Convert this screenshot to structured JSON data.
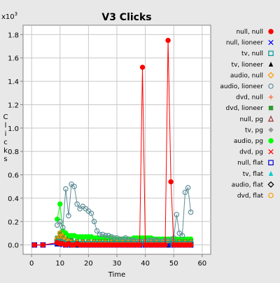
{
  "chart_data": {
    "type": "line",
    "title": "V3 Clicks",
    "xlabel": "Time",
    "ylabel": "Clicks",
    "y_multiplier_label": "x10",
    "y_multiplier_exp": "3",
    "xlim": [
      -3,
      63
    ],
    "ylim": [
      -0.08,
      1.88
    ],
    "xticks": [
      0,
      10,
      20,
      30,
      40,
      50,
      60
    ],
    "yticks": [
      0.0,
      0.2,
      0.4,
      0.6,
      0.8,
      1.0,
      1.2,
      1.4,
      1.6,
      1.8
    ],
    "grid": true,
    "legend_position": "right",
    "series": [
      {
        "name": "null, null",
        "color": "#ff0000",
        "marker": "circle-filled",
        "line": true,
        "x": [
          1,
          4,
          9,
          10,
          11,
          12,
          13,
          14,
          15,
          16,
          17,
          18,
          19,
          20,
          21,
          22,
          23,
          24,
          25,
          26,
          27,
          28,
          29,
          30,
          31,
          32,
          33,
          34,
          35,
          36,
          37,
          38,
          39,
          40,
          41,
          42,
          43,
          44,
          45,
          46,
          47,
          48,
          49,
          50,
          51,
          52,
          53,
          54,
          55,
          56
        ],
        "y": [
          0.0,
          0.0,
          0.02,
          0.01,
          0.01,
          0.0,
          0.01,
          0.0,
          0.0,
          0.01,
          0.0,
          0.0,
          0.0,
          0.0,
          0.0,
          0.0,
          0.0,
          0.0,
          0.0,
          0.0,
          0.0,
          0.0,
          0.0,
          0.0,
          0.0,
          0.0,
          0.0,
          0.0,
          0.0,
          0.0,
          0.0,
          0.0,
          1.52,
          0.0,
          0.0,
          0.0,
          0.0,
          0.0,
          0.0,
          0.0,
          0.0,
          1.75,
          0.54,
          0.0,
          0.0,
          0.0,
          0.0,
          0.0,
          0.0,
          0.0
        ]
      },
      {
        "name": "null, lioneer",
        "color": "#0000ff",
        "marker": "x",
        "line": true,
        "x": [
          1,
          4,
          9,
          10,
          11,
          12,
          14,
          16,
          18,
          20,
          22,
          24,
          26,
          28,
          30,
          32,
          34,
          36,
          38,
          40,
          42,
          44,
          46,
          48,
          50,
          52,
          54,
          56
        ],
        "y": [
          0.0,
          0.0,
          0.01,
          0.01,
          0.0,
          0.0,
          0.0,
          0.0,
          0.0,
          0.0,
          0.0,
          0.0,
          0.0,
          0.0,
          0.0,
          0.0,
          0.0,
          0.0,
          0.0,
          0.0,
          0.0,
          0.0,
          0.0,
          0.0,
          0.0,
          0.0,
          0.0,
          0.0
        ]
      },
      {
        "name": "tv, null",
        "color": "#009999",
        "marker": "square-open",
        "line": true,
        "x": [
          9,
          10,
          11,
          12,
          13,
          14,
          15,
          16,
          18,
          20,
          22,
          24,
          26,
          28,
          30,
          32,
          34,
          36,
          38,
          40,
          42,
          44,
          46,
          48,
          50,
          52,
          54,
          56
        ],
        "y": [
          0.02,
          0.03,
          0.02,
          0.01,
          0.01,
          0.01,
          0.01,
          0.01,
          0.01,
          0.01,
          0.01,
          0.01,
          0.01,
          0.01,
          0.01,
          0.01,
          0.01,
          0.01,
          0.01,
          0.01,
          0.01,
          0.01,
          0.01,
          0.01,
          0.01,
          0.01,
          0.01,
          0.01
        ]
      },
      {
        "name": "tv, lioneer",
        "color": "#000000",
        "marker": "triangle-filled",
        "line": true,
        "x": [
          9,
          10,
          11,
          12,
          14,
          16,
          18,
          20,
          22,
          24,
          26,
          28,
          30,
          32,
          34,
          36,
          38,
          40,
          42,
          44,
          46,
          48,
          50,
          52,
          54,
          56
        ],
        "y": [
          0.01,
          0.02,
          0.01,
          0.0,
          0.0,
          0.0,
          0.0,
          0.0,
          0.0,
          0.0,
          0.0,
          0.0,
          0.0,
          0.0,
          0.0,
          0.0,
          0.0,
          0.0,
          0.0,
          0.0,
          0.0,
          0.0,
          0.0,
          0.0,
          0.0,
          0.0
        ]
      },
      {
        "name": "audio, null",
        "color": "#ff9900",
        "marker": "diamond-open",
        "line": true,
        "x": [
          9,
          10,
          11,
          12,
          13,
          14,
          16,
          18,
          20,
          22,
          24,
          26,
          28,
          30,
          32,
          34,
          36,
          38,
          40,
          42,
          44,
          46,
          48,
          50,
          52,
          54,
          56
        ],
        "y": [
          0.05,
          0.1,
          0.07,
          0.04,
          0.03,
          0.02,
          0.02,
          0.02,
          0.02,
          0.02,
          0.02,
          0.02,
          0.02,
          0.02,
          0.02,
          0.02,
          0.02,
          0.02,
          0.02,
          0.02,
          0.02,
          0.02,
          0.02,
          0.02,
          0.02,
          0.02,
          0.02
        ]
      },
      {
        "name": "audio, lioneer",
        "color": "#5f8f99",
        "marker": "circle-open",
        "line": true,
        "x": [
          9,
          10,
          11,
          12,
          13,
          14,
          15,
          16,
          17,
          18,
          19,
          20,
          21,
          22,
          23,
          24,
          25,
          26,
          27,
          28,
          29,
          30,
          31,
          32,
          33,
          34,
          35,
          36,
          37,
          38,
          39,
          40,
          41,
          42,
          43,
          44,
          45,
          46,
          47,
          48,
          49,
          50,
          51,
          52,
          53,
          54,
          55,
          56
        ],
        "y": [
          0.17,
          0.2,
          0.15,
          0.48,
          0.25,
          0.52,
          0.5,
          0.35,
          0.31,
          0.33,
          0.31,
          0.29,
          0.27,
          0.2,
          0.12,
          0.09,
          0.09,
          0.08,
          0.08,
          0.07,
          0.06,
          0.06,
          0.05,
          0.05,
          0.06,
          0.05,
          0.04,
          0.04,
          0.03,
          0.03,
          0.03,
          0.03,
          0.04,
          0.04,
          0.04,
          0.04,
          0.03,
          0.03,
          0.04,
          0.03,
          0.04,
          0.06,
          0.26,
          0.1,
          0.08,
          0.45,
          0.49,
          0.28
        ]
      },
      {
        "name": "dvd, null",
        "color": "#ff6633",
        "marker": "plus",
        "line": true,
        "x": [
          9,
          10,
          11,
          12,
          14,
          16,
          18,
          20,
          22,
          24,
          26,
          28,
          30,
          32,
          34,
          36,
          38,
          40,
          42,
          44,
          46,
          48,
          50,
          52,
          54,
          56
        ],
        "y": [
          0.03,
          0.05,
          0.04,
          0.02,
          0.01,
          0.01,
          0.01,
          0.01,
          0.01,
          0.01,
          0.01,
          0.01,
          0.01,
          0.01,
          0.01,
          0.01,
          0.01,
          0.01,
          0.01,
          0.01,
          0.01,
          0.01,
          0.01,
          0.01,
          0.01,
          0.01
        ]
      },
      {
        "name": "dvd, lioneer",
        "color": "#339933",
        "marker": "square-filled",
        "line": true,
        "x": [
          9,
          10,
          11,
          12,
          13,
          14,
          16,
          18,
          20,
          22,
          24,
          26,
          28,
          30,
          32,
          34,
          36,
          38,
          40,
          42,
          44,
          46,
          48,
          50,
          52,
          54,
          56
        ],
        "y": [
          0.06,
          0.1,
          0.07,
          0.05,
          0.04,
          0.04,
          0.03,
          0.03,
          0.03,
          0.03,
          0.03,
          0.03,
          0.03,
          0.03,
          0.03,
          0.03,
          0.03,
          0.03,
          0.03,
          0.03,
          0.03,
          0.03,
          0.03,
          0.03,
          0.03,
          0.03,
          0.03
        ]
      },
      {
        "name": "null, pg",
        "color": "#993333",
        "marker": "triangle-open",
        "line": true,
        "x": [
          9,
          10,
          11,
          12,
          14,
          16,
          18,
          20,
          22,
          24,
          26,
          28,
          30,
          32,
          34,
          36,
          38,
          40,
          42,
          44,
          46,
          48,
          50,
          52,
          54,
          56
        ],
        "y": [
          0.04,
          0.08,
          0.05,
          0.03,
          0.02,
          0.02,
          0.02,
          0.02,
          0.02,
          0.02,
          0.02,
          0.02,
          0.02,
          0.02,
          0.02,
          0.02,
          0.02,
          0.02,
          0.02,
          0.02,
          0.02,
          0.02,
          0.02,
          0.02,
          0.02,
          0.02
        ]
      },
      {
        "name": "tv, pg",
        "color": "#999999",
        "marker": "diamond-filled",
        "line": true,
        "x": [
          9,
          10,
          11,
          12,
          14,
          16,
          18,
          20,
          22,
          24,
          26,
          28,
          30,
          32,
          34,
          36,
          38,
          40,
          42,
          44,
          46,
          48,
          50,
          52,
          54,
          56
        ],
        "y": [
          0.03,
          0.06,
          0.04,
          0.03,
          0.02,
          0.02,
          0.02,
          0.02,
          0.02,
          0.02,
          0.02,
          0.02,
          0.02,
          0.02,
          0.02,
          0.02,
          0.02,
          0.02,
          0.02,
          0.02,
          0.02,
          0.02,
          0.02,
          0.02,
          0.02,
          0.02
        ]
      },
      {
        "name": "audio, pg",
        "color": "#00ff00",
        "marker": "circle-filled",
        "line": true,
        "x": [
          9,
          10,
          11,
          12,
          13,
          14,
          15,
          16,
          17,
          18,
          19,
          20,
          21,
          22,
          23,
          24,
          25,
          26,
          27,
          28,
          29,
          30,
          31,
          32,
          33,
          34,
          35,
          36,
          37,
          38,
          39,
          40,
          41,
          42,
          43,
          44,
          45,
          46,
          47,
          48,
          49,
          50,
          51,
          52,
          53,
          54,
          55,
          56
        ],
        "y": [
          0.22,
          0.35,
          0.12,
          0.1,
          0.08,
          0.08,
          0.08,
          0.07,
          0.07,
          0.07,
          0.07,
          0.07,
          0.07,
          0.06,
          0.06,
          0.06,
          0.06,
          0.06,
          0.06,
          0.06,
          0.05,
          0.05,
          0.05,
          0.05,
          0.05,
          0.05,
          0.05,
          0.06,
          0.06,
          0.06,
          0.06,
          0.06,
          0.06,
          0.06,
          0.05,
          0.05,
          0.05,
          0.05,
          0.05,
          0.05,
          0.05,
          0.05,
          0.05,
          0.05,
          0.05,
          0.05,
          0.05,
          0.05
        ]
      },
      {
        "name": "dvd, pg",
        "color": "#ff0000",
        "marker": "x",
        "line": true,
        "x": [
          9,
          10,
          11,
          12,
          14,
          16,
          18,
          20,
          22,
          24,
          26,
          28,
          30,
          32,
          34,
          36,
          38,
          40,
          42,
          44,
          46,
          48,
          50,
          52,
          54,
          56
        ],
        "y": [
          0.03,
          0.06,
          0.04,
          0.02,
          0.01,
          0.01,
          0.01,
          0.01,
          0.01,
          0.01,
          0.01,
          0.01,
          0.01,
          0.01,
          0.01,
          0.01,
          0.01,
          0.01,
          0.01,
          0.01,
          0.01,
          0.01,
          0.01,
          0.01,
          0.01,
          0.01
        ]
      },
      {
        "name": "null, flat",
        "color": "#0000cc",
        "marker": "square-open",
        "line": true,
        "x": [
          1,
          4,
          9,
          10,
          12,
          14,
          16,
          18,
          20,
          22,
          24,
          26,
          28,
          30,
          32,
          34,
          36,
          38,
          40,
          42,
          44,
          46,
          48,
          50,
          52,
          54,
          56
        ],
        "y": [
          0.0,
          0.0,
          0.01,
          0.01,
          0.0,
          0.0,
          0.0,
          0.0,
          0.0,
          0.0,
          0.0,
          0.0,
          0.0,
          0.0,
          0.0,
          0.0,
          0.0,
          0.0,
          0.0,
          0.0,
          0.0,
          0.0,
          0.0,
          0.0,
          0.0,
          0.0,
          0.0
        ]
      },
      {
        "name": "tv, flat",
        "color": "#00cccc",
        "marker": "triangle-filled",
        "line": true,
        "x": [
          9,
          10,
          11,
          12,
          14,
          16,
          18,
          20,
          22,
          24,
          26,
          28,
          30,
          32,
          34,
          36,
          38,
          40,
          42,
          44,
          46,
          48,
          50,
          52,
          54,
          56
        ],
        "y": [
          0.02,
          0.03,
          0.02,
          0.01,
          0.01,
          0.01,
          0.01,
          0.01,
          0.01,
          0.01,
          0.01,
          0.01,
          0.01,
          0.01,
          0.01,
          0.01,
          0.01,
          0.01,
          0.01,
          0.01,
          0.01,
          0.01,
          0.01,
          0.01,
          0.01,
          0.01
        ]
      },
      {
        "name": "audio, flat",
        "color": "#000000",
        "marker": "diamond-open",
        "line": true,
        "x": [
          9,
          10,
          11,
          12,
          14,
          16,
          18,
          20,
          22,
          24,
          26,
          28,
          30,
          32,
          34,
          36,
          38,
          40,
          42,
          44,
          46,
          48,
          50,
          52,
          54,
          56
        ],
        "y": [
          0.04,
          0.07,
          0.05,
          0.03,
          0.02,
          0.02,
          0.02,
          0.02,
          0.02,
          0.02,
          0.02,
          0.02,
          0.02,
          0.02,
          0.02,
          0.02,
          0.02,
          0.02,
          0.02,
          0.02,
          0.02,
          0.02,
          0.02,
          0.02,
          0.02,
          0.02
        ]
      },
      {
        "name": "dvd, flat",
        "color": "#ff9900",
        "marker": "circle-open",
        "line": true,
        "x": [
          9,
          10,
          11,
          12,
          14,
          16,
          18,
          20,
          22,
          24,
          26,
          28,
          30,
          32,
          34,
          36,
          38,
          40,
          42,
          44,
          46,
          48,
          50,
          52,
          54,
          56
        ],
        "y": [
          0.02,
          0.04,
          0.03,
          0.02,
          0.01,
          0.01,
          0.01,
          0.01,
          0.01,
          0.01,
          0.01,
          0.01,
          0.01,
          0.01,
          0.01,
          0.01,
          0.01,
          0.01,
          0.01,
          0.01,
          0.01,
          0.01,
          0.01,
          0.01,
          0.01,
          0.01
        ]
      }
    ]
  }
}
